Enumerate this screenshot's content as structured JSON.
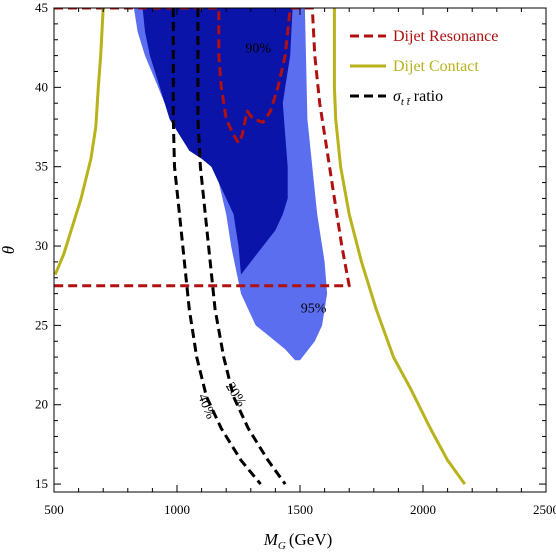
{
  "chart_data": {
    "type": "area",
    "xlabel_main": "M",
    "xlabel_sub": "G",
    "xlabel_unit": "(GeV)",
    "ylabel": "θ",
    "xlim": [
      500,
      2500
    ],
    "ylim": [
      14.5,
      45
    ],
    "xticks": [
      500,
      1000,
      1500,
      2000,
      2500
    ],
    "yticks": [
      15,
      20,
      25,
      30,
      35,
      40,
      45
    ],
    "grid": false,
    "legend_position": "top-right",
    "colors": {
      "region95": "#5b6ef0",
      "region90": "#0a14a8",
      "dijet_resonance": "#b01010",
      "dijet_contact": "#b8b21c",
      "ttbar_ratio": "#000000"
    },
    "legend": [
      {
        "label": "Dijet Resonance",
        "style": "dashed",
        "color": "#b01010"
      },
      {
        "label": "Dijet Contact",
        "style": "solid",
        "color": "#b8b21c"
      },
      {
        "label": "ratio",
        "prefix": "σ",
        "subscript": "t t̄",
        "style": "dashed",
        "color": "#000000"
      }
    ],
    "annotations": {
      "region90_label": "90%",
      "region95_label": "95%",
      "ratio40_label": "40%",
      "ratio20_label": "20%"
    },
    "series": [
      {
        "id": "region95",
        "kind": "fill",
        "points": [
          [
            860,
            45
          ],
          [
            1520,
            45
          ],
          [
            1530,
            38
          ],
          [
            1550,
            35
          ],
          [
            1570,
            32
          ],
          [
            1600,
            29
          ],
          [
            1610,
            27
          ],
          [
            1600,
            26
          ],
          [
            1590,
            25
          ],
          [
            1560,
            24
          ],
          [
            1500,
            22.8
          ],
          [
            1480,
            22.8
          ],
          [
            1440,
            23.5
          ],
          [
            1400,
            24
          ],
          [
            1360,
            24.5
          ],
          [
            1320,
            25
          ],
          [
            1290,
            26
          ],
          [
            1260,
            27
          ],
          [
            1240,
            28.5
          ],
          [
            1220,
            30
          ],
          [
            1210,
            31
          ],
          [
            1200,
            32
          ],
          [
            1170,
            34
          ],
          [
            1140,
            35
          ],
          [
            1080,
            36
          ],
          [
            1000,
            37.5
          ],
          [
            950,
            39
          ],
          [
            910,
            40.5
          ],
          [
            870,
            42
          ],
          [
            840,
            43.5
          ],
          [
            825,
            45
          ]
        ]
      },
      {
        "id": "region90",
        "kind": "fill",
        "points": [
          [
            860,
            45
          ],
          [
            1470,
            45
          ],
          [
            1460,
            42
          ],
          [
            1440,
            40
          ],
          [
            1430,
            39
          ],
          [
            1440,
            37
          ],
          [
            1450,
            35
          ],
          [
            1450,
            33
          ],
          [
            1430,
            32
          ],
          [
            1400,
            31
          ],
          [
            1350,
            30
          ],
          [
            1300,
            29
          ],
          [
            1260,
            28.2
          ],
          [
            1250,
            30
          ],
          [
            1240,
            31
          ],
          [
            1230,
            32
          ],
          [
            1200,
            33
          ],
          [
            1170,
            34
          ],
          [
            1140,
            35
          ],
          [
            1100,
            35.5
          ],
          [
            1050,
            36
          ],
          [
            1010,
            37
          ],
          [
            970,
            38
          ],
          [
            950,
            39
          ],
          [
            930,
            40
          ],
          [
            910,
            41
          ],
          [
            890,
            42
          ],
          [
            870,
            43.5
          ],
          [
            860,
            45
          ]
        ]
      },
      {
        "id": "dijet_resonance",
        "kind": "line",
        "style": "dashed",
        "points": [
          [
            500,
            45
          ],
          [
            1170,
            45
          ],
          [
            1170,
            42
          ],
          [
            1180,
            40
          ],
          [
            1200,
            38
          ],
          [
            1230,
            37
          ],
          [
            1250,
            36.5
          ],
          [
            1265,
            37
          ],
          [
            1285,
            38.5
          ],
          [
            1310,
            38
          ],
          [
            1350,
            37.8
          ],
          [
            1380,
            38.5
          ],
          [
            1410,
            40
          ],
          [
            1440,
            42
          ],
          [
            1460,
            45
          ],
          [
            1550,
            45
          ],
          [
            1560,
            42
          ],
          [
            1580,
            39
          ],
          [
            1610,
            36
          ],
          [
            1640,
            33
          ],
          [
            1670,
            30
          ],
          [
            1700,
            27.5
          ],
          [
            500,
            27.5
          ]
        ]
      },
      {
        "id": "dijet_contact_left",
        "kind": "line",
        "style": "solid",
        "points": [
          [
            700,
            45
          ],
          [
            690,
            42
          ],
          [
            680,
            40
          ],
          [
            670,
            37.5
          ],
          [
            650,
            35.5
          ],
          [
            610,
            33
          ],
          [
            570,
            31
          ],
          [
            540,
            29.5
          ],
          [
            505,
            28.2
          ]
        ]
      },
      {
        "id": "dijet_contact_right",
        "kind": "line",
        "style": "solid",
        "points": [
          [
            1640,
            45
          ],
          [
            1640,
            40
          ],
          [
            1645,
            38
          ],
          [
            1665,
            35
          ],
          [
            1700,
            32
          ],
          [
            1750,
            29
          ],
          [
            1810,
            26
          ],
          [
            1880,
            23
          ],
          [
            1950,
            21
          ],
          [
            2030,
            18.5
          ],
          [
            2100,
            16.5
          ],
          [
            2170,
            15
          ]
        ]
      },
      {
        "id": "ratio_40",
        "kind": "line",
        "style": "dashed",
        "points": [
          [
            985,
            45
          ],
          [
            985,
            38
          ],
          [
            990,
            35
          ],
          [
            1010,
            32
          ],
          [
            1030,
            29
          ],
          [
            1050,
            26
          ],
          [
            1080,
            23
          ],
          [
            1120,
            20.5
          ],
          [
            1180,
            18.5
          ],
          [
            1260,
            16.5
          ],
          [
            1340,
            15
          ]
        ]
      },
      {
        "id": "ratio_20",
        "kind": "line",
        "style": "dashed",
        "points": [
          [
            1085,
            45
          ],
          [
            1085,
            38
          ],
          [
            1095,
            35
          ],
          [
            1115,
            32
          ],
          [
            1135,
            29
          ],
          [
            1155,
            26
          ],
          [
            1190,
            23
          ],
          [
            1230,
            20.5
          ],
          [
            1290,
            18.5
          ],
          [
            1370,
            16.5
          ],
          [
            1440,
            15
          ]
        ]
      }
    ]
  }
}
